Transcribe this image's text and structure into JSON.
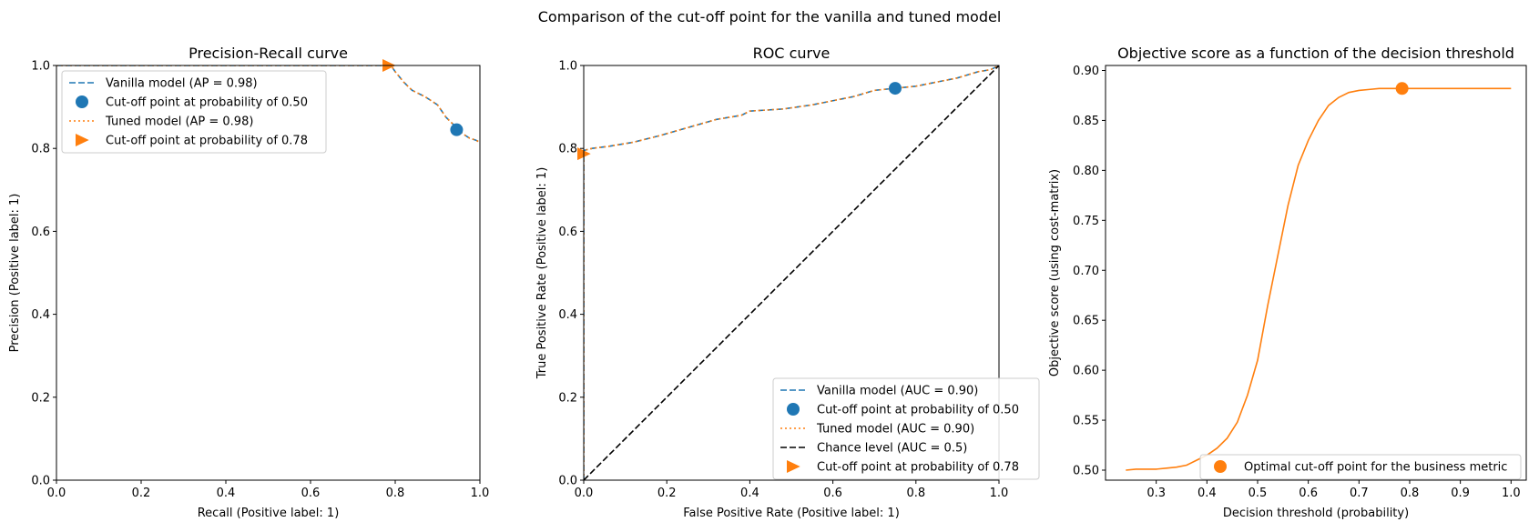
{
  "suptitle": "Comparison of the cut-off point for the vanilla and tuned model",
  "colors": {
    "blue": "#1f77b4",
    "orange": "#ff7f0e",
    "black": "#000000"
  },
  "chart_data": [
    {
      "type": "line",
      "title": "Precision-Recall curve",
      "xlabel": "Recall (Positive label: 1)",
      "ylabel": "Precision (Positive label: 1)",
      "xlim": [
        0.0,
        1.0
      ],
      "ylim": [
        0.0,
        1.0
      ],
      "xticks": [
        "0.0",
        "0.2",
        "0.4",
        "0.6",
        "0.8",
        "1.0"
      ],
      "yticks": [
        "0.0",
        "0.2",
        "0.4",
        "0.6",
        "0.8",
        "1.0"
      ],
      "legend_position": "top-left",
      "legend": [
        {
          "label": "Vanilla model (AP = 0.98)",
          "kind": "dashed",
          "color": "#1f77b4"
        },
        {
          "label": "Cut-off point at probability of 0.50",
          "kind": "circle",
          "color": "#1f77b4"
        },
        {
          "label": "Tuned model (AP = 0.98)",
          "kind": "dotted",
          "color": "#ff7f0e"
        },
        {
          "label": "Cut-off point at probability of 0.78",
          "kind": "triangle",
          "color": "#ff7f0e"
        }
      ],
      "series": [
        {
          "x": [
            0.0,
            0.79,
            0.8,
            0.82,
            0.84,
            0.87,
            0.9,
            0.92,
            0.945,
            0.96,
            0.975,
            0.99,
            1.0
          ],
          "y": [
            1.0,
            1.0,
            0.985,
            0.96,
            0.94,
            0.925,
            0.905,
            0.875,
            0.85,
            0.835,
            0.825,
            0.82,
            0.815
          ],
          "style": "dashed",
          "color": "#1f77b4"
        },
        {
          "x": [
            0.0,
            0.79,
            0.8,
            0.82,
            0.84,
            0.87,
            0.9,
            0.92,
            0.945,
            0.96,
            0.975,
            0.99,
            1.0
          ],
          "y": [
            1.0,
            1.0,
            0.985,
            0.96,
            0.94,
            0.925,
            0.905,
            0.875,
            0.85,
            0.835,
            0.825,
            0.82,
            0.815
          ],
          "style": "dotted",
          "color": "#ff7f0e"
        }
      ],
      "points": [
        {
          "x": 0.945,
          "y": 0.845,
          "marker": "circle",
          "color": "#1f77b4"
        },
        {
          "x": 0.785,
          "y": 1.0,
          "marker": "triangle",
          "color": "#ff7f0e"
        }
      ]
    },
    {
      "type": "line",
      "title": "ROC curve",
      "xlabel": "False Positive Rate (Positive label: 1)",
      "ylabel": "True Positive Rate (Positive label: 1)",
      "xlim": [
        0.0,
        1.0
      ],
      "ylim": [
        0.0,
        1.0
      ],
      "xticks": [
        "0.0",
        "0.2",
        "0.4",
        "0.6",
        "0.8",
        "1.0"
      ],
      "yticks": [
        "0.0",
        "0.2",
        "0.4",
        "0.6",
        "0.8",
        "1.0"
      ],
      "legend_position": "bottom-right",
      "legend": [
        {
          "label": "Vanilla model (AUC = 0.90)",
          "kind": "dashed",
          "color": "#1f77b4"
        },
        {
          "label": "Cut-off point at probability of 0.50",
          "kind": "circle",
          "color": "#1f77b4"
        },
        {
          "label": "Tuned model (AUC = 0.90)",
          "kind": "dotted",
          "color": "#ff7f0e"
        },
        {
          "label": "Chance level (AUC = 0.5)",
          "kind": "dashed",
          "color": "#000000"
        },
        {
          "label": "Cut-off point at probability of 0.78",
          "kind": "triangle",
          "color": "#ff7f0e"
        }
      ],
      "series": [
        {
          "x": [
            0.0,
            0.0,
            0.0,
            0.02,
            0.06,
            0.12,
            0.18,
            0.25,
            0.32,
            0.38,
            0.4,
            0.48,
            0.55,
            0.6,
            0.65,
            0.7,
            0.75,
            0.8,
            0.85,
            0.9,
            0.95,
            0.98,
            1.0
          ],
          "y": [
            0.0,
            0.79,
            0.795,
            0.8,
            0.805,
            0.815,
            0.83,
            0.85,
            0.87,
            0.88,
            0.89,
            0.895,
            0.905,
            0.915,
            0.925,
            0.94,
            0.945,
            0.95,
            0.96,
            0.97,
            0.985,
            0.99,
            1.0
          ],
          "style": "dashed",
          "color": "#1f77b4"
        },
        {
          "x": [
            0.0,
            0.0,
            0.0,
            0.02,
            0.06,
            0.12,
            0.18,
            0.25,
            0.32,
            0.38,
            0.4,
            0.48,
            0.55,
            0.6,
            0.65,
            0.7,
            0.75,
            0.8,
            0.85,
            0.9,
            0.95,
            0.98,
            1.0
          ],
          "y": [
            0.0,
            0.79,
            0.795,
            0.8,
            0.805,
            0.815,
            0.83,
            0.85,
            0.87,
            0.88,
            0.89,
            0.895,
            0.905,
            0.915,
            0.925,
            0.94,
            0.945,
            0.95,
            0.96,
            0.97,
            0.985,
            0.99,
            1.0
          ],
          "style": "dotted",
          "color": "#ff7f0e"
        },
        {
          "x": [
            0.0,
            1.0
          ],
          "y": [
            0.0,
            1.0
          ],
          "style": "dashed",
          "color": "#000000"
        }
      ],
      "points": [
        {
          "x": 0.75,
          "y": 0.945,
          "marker": "circle",
          "color": "#1f77b4"
        },
        {
          "x": 0.0,
          "y": 0.787,
          "marker": "triangle",
          "color": "#ff7f0e"
        }
      ]
    },
    {
      "type": "line",
      "title": "Objective score as a function of the decision threshold",
      "xlabel": "Decision threshold (probability)",
      "ylabel": "Objective score (using cost-matrix)",
      "xlim": [
        0.2,
        1.03
      ],
      "ylim": [
        0.49,
        0.905
      ],
      "xticks": [
        "0.3",
        "0.4",
        "0.5",
        "0.6",
        "0.7",
        "0.8",
        "0.9",
        "1.0"
      ],
      "yticks": [
        "0.50",
        "0.55",
        "0.60",
        "0.65",
        "0.70",
        "0.75",
        "0.80",
        "0.85",
        "0.90"
      ],
      "legend_position": "bottom-right",
      "legend": [
        {
          "label": "Optimal cut-off point for the business metric",
          "kind": "circle",
          "color": "#ff7f0e"
        }
      ],
      "series": [
        {
          "x": [
            0.24,
            0.26,
            0.28,
            0.3,
            0.32,
            0.34,
            0.36,
            0.38,
            0.4,
            0.42,
            0.44,
            0.46,
            0.48,
            0.5,
            0.52,
            0.54,
            0.56,
            0.58,
            0.6,
            0.62,
            0.64,
            0.66,
            0.68,
            0.7,
            0.72,
            0.74,
            0.76,
            0.78,
            0.8,
            0.85,
            0.9,
            0.95,
            1.0
          ],
          "y": [
            0.5,
            0.501,
            0.501,
            0.501,
            0.502,
            0.503,
            0.505,
            0.51,
            0.515,
            0.522,
            0.532,
            0.548,
            0.575,
            0.61,
            0.665,
            0.715,
            0.765,
            0.805,
            0.83,
            0.85,
            0.865,
            0.873,
            0.878,
            0.88,
            0.881,
            0.882,
            0.882,
            0.882,
            0.882,
            0.882,
            0.882,
            0.882,
            0.882
          ],
          "style": "solid",
          "color": "#ff7f0e"
        }
      ],
      "points": [
        {
          "x": 0.785,
          "y": 0.882,
          "marker": "circle",
          "color": "#ff7f0e"
        }
      ]
    }
  ]
}
